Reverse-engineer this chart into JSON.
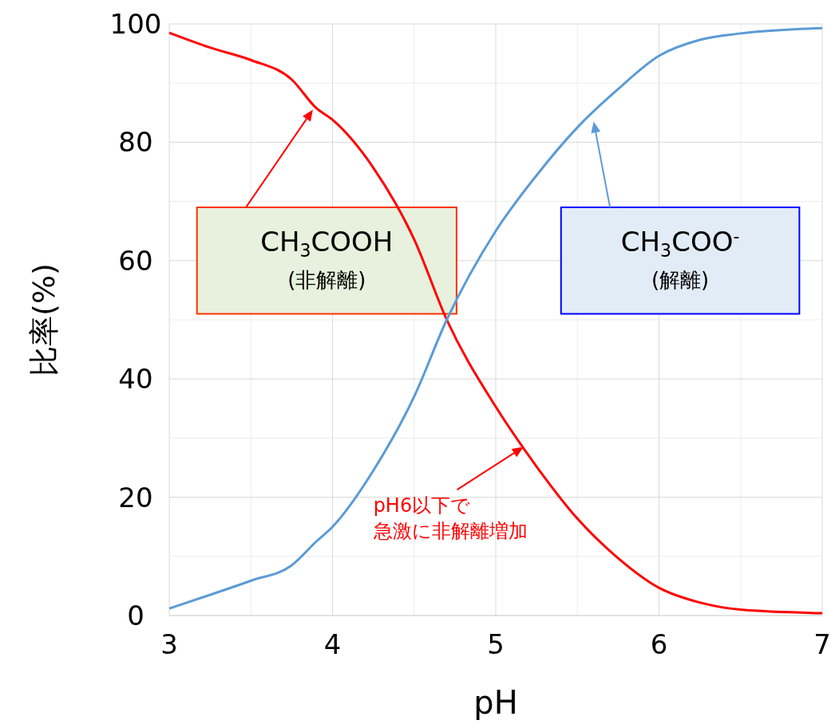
{
  "chart_data": {
    "type": "line",
    "xlabel": "pH",
    "ylabel": "比率(%)",
    "xlim": [
      3,
      7
    ],
    "xticks": [
      3,
      {
        "value": 3.5,
        "label": null
      },
      4,
      {
        "value": 4.5,
        "label": null
      },
      5,
      {
        "value": 5.5,
        "label": null
      },
      6,
      {
        "value": 6.5,
        "label": null
      },
      7
    ],
    "ylim": [
      0,
      100
    ],
    "yticks": [
      0,
      {
        "value": 10,
        "label": null
      },
      20,
      {
        "value": 30,
        "label": null
      },
      40,
      {
        "value": 50,
        "label": null
      },
      60,
      {
        "value": 70,
        "label": null
      },
      80,
      {
        "value": 90,
        "label": null
      },
      100
    ],
    "grid": true,
    "line_style": "solid",
    "marker": "none",
    "x": [
      3,
      3.25,
      3.5,
      3.75,
      3.9,
      4,
      4.25,
      4.5,
      4.7,
      5,
      5.25,
      5.5,
      5.75,
      6,
      6.25,
      6.5,
      7
    ],
    "series": [
      {
        "color": "#ff0000",
        "values": [
          98.5,
          96,
          93.9,
          90.6,
          85.8,
          83.8,
          75.7,
          63.6,
          50,
          35.3,
          25.2,
          16.4,
          9.7,
          4.7,
          2.2,
          1,
          0.4
        ]
      },
      {
        "color": "#5b9bd5",
        "values": [
          1.2,
          3.5,
          5.9,
          8.5,
          12.5,
          15,
          24.5,
          37,
          50,
          65,
          74.4,
          82.5,
          89,
          94.6,
          97.3,
          98.4,
          99.3
        ]
      }
    ],
    "annotations": [
      "CH$_{3}$COOH",
      "(非解離)",
      "CH$_{3}$COO$^{-}$",
      "(解離)",
      "pH6以下で",
      "急激に非解離増加"
    ]
  }
}
